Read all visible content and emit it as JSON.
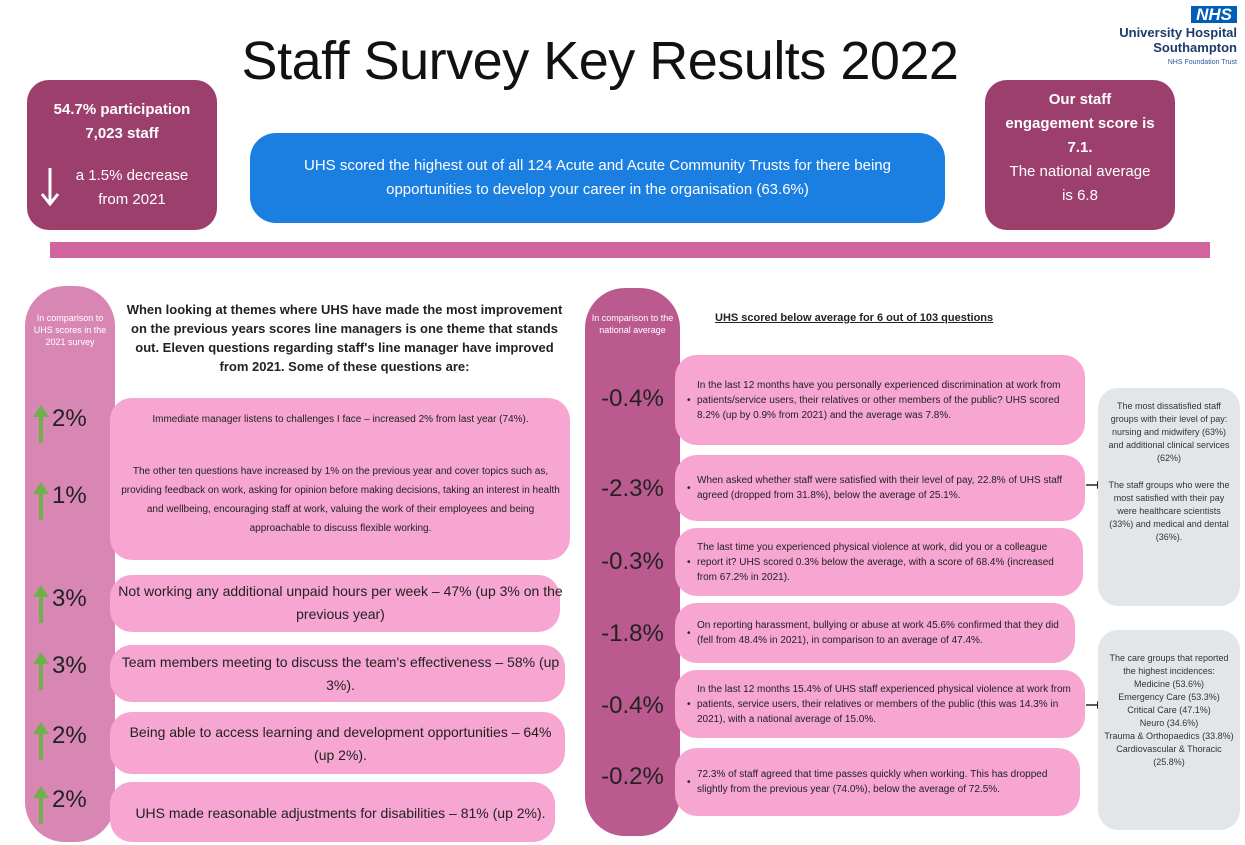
{
  "header": {
    "title": "Staff Survey Key Results 2022",
    "logo": {
      "badge": "NHS",
      "line1": "University Hospital",
      "line2": "Southampton",
      "line3": "NHS Foundation Trust"
    }
  },
  "participation": {
    "rate": "54.7% participation",
    "staff": "7,023 staff",
    "change": "a 1.5% decrease from 2021"
  },
  "highlight": "UHS scored the highest out of all 124 Acute and Acute Community Trusts for there being opportunities to develop your career in the organisation (63.6%)",
  "engagement": {
    "score": "Our staff engagement score is 7.1.",
    "national": "The national average is 6.8"
  },
  "left": {
    "side_label": "In comparison to UHS scores in the 2021 survey",
    "intro": "When looking at themes where UHS have made the most improvement on the previous years scores line managers is one theme that stands out. Eleven questions regarding staff's line manager have improved from 2021. Some of these questions are:",
    "items": [
      {
        "change": "2%",
        "text": "Immediate manager listens to challenges I face – increased 2% from last year (74%)."
      },
      {
        "change": "1%",
        "text": "The other ten questions have increased by 1% on the previous year and cover topics such as, providing feedback on work, asking for opinion before making decisions, taking an interest in health and wellbeing, encouraging staff at work, valuing the work of their employees and being approachable to discuss flexible working."
      },
      {
        "change": "3%",
        "text": "Not working any additional unpaid hours per week – 47% (up 3% on the previous year)"
      },
      {
        "change": "3%",
        "text": "Team members meeting to discuss the team's effectiveness – 58% (up 3%)."
      },
      {
        "change": "2%",
        "text": "Being able to access learning and development opportunities – 64% (up 2%)."
      },
      {
        "change": "2%",
        "text": "UHS made reasonable adjustments for disabilities – 81% (up 2%)."
      }
    ]
  },
  "right": {
    "side_label": "In comparison to the national average",
    "heading": "UHS scored below average for 6 out of 103 questions",
    "items": [
      {
        "change": "-0.4%",
        "text": "In the last 12 months have you personally experienced discrimination at work from patients/service users, their relatives or other members of the public? UHS scored 8.2% (up by 0.9% from 2021) and the average was 7.8%."
      },
      {
        "change": "-2.3%",
        "text": "When asked whether staff were satisfied with their level of pay, 22.8% of UHS staff agreed (dropped from 31.8%), below the average of 25.1%."
      },
      {
        "change": "-0.3%",
        "text": "The last time you experienced physical violence at work, did you or a colleague report it? UHS scored 0.3% below the average, with a score of 68.4% (increased from 67.2% in 2021)."
      },
      {
        "change": "-1.8%",
        "text": "On reporting harassment, bullying or abuse at work 45.6% confirmed that they did (fell from 48.4% in 2021), in comparison to an average of 47.4%."
      },
      {
        "change": "-0.4%",
        "text": "In the last 12 months 15.4% of UHS staff experienced physical violence at work from patients, service users, their relatives or members of the public (this was 14.3% in 2021), with a national average of 15.0%."
      },
      {
        "change": "-0.2%",
        "text": "72.3% of staff agreed that time passes quickly when working. This has dropped slightly from the previous year (74.0%), below the average of 72.5%."
      }
    ]
  },
  "notes": {
    "pay": [
      "The most dissatisfied staff groups with their level of pay: nursing and midwifery (63%) and additional clinical services (62%)",
      "The staff groups who were the most satisfied with their pay were healthcare scientists (33%) and medical and dental (36%)."
    ],
    "violence": {
      "intro": "The care groups that reported the highest incidences:",
      "groups": [
        "Medicine (53.6%)",
        "Emergency Care (53.3%)",
        "Critical Care (47.1%)",
        "Neuro (34.6%)",
        "Trauma & Orthopaedics (33.8%)",
        "Cardiovascular & Thoracic (25.8%)"
      ]
    }
  }
}
